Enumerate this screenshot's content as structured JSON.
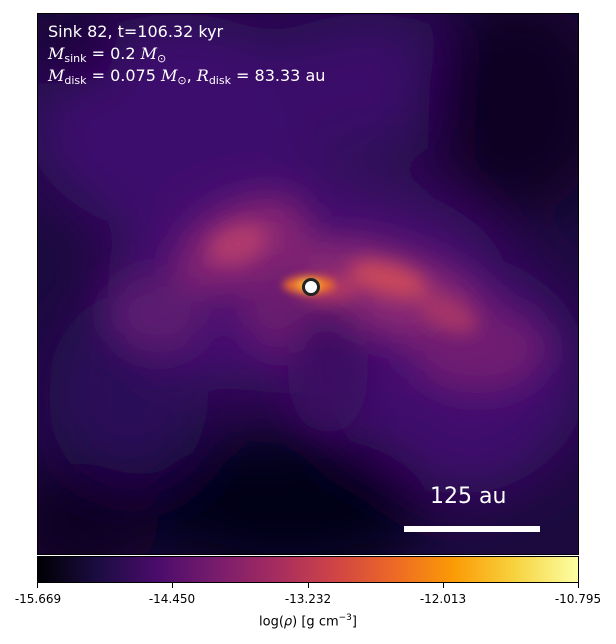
{
  "title": {
    "sink_line": "Sink 82, t=106.32 kyr",
    "msink_symbol": "M",
    "msink_sub": "sink",
    "msink_value": " = 0.2 ",
    "msun_symbol": "M",
    "msun_sub": "⊙",
    "mdisk_symbol": "M",
    "mdisk_sub": "disk",
    "mdisk_value": " = 0.075 ",
    "mdisk_sun_symbol": "M",
    "mdisk_sun_sub": "⊙",
    "rdisk_prefix": ", ",
    "rdisk_symbol": "R",
    "rdisk_sub": "disk",
    "rdisk_value": " = 83.33 au"
  },
  "scale_bar": {
    "label": "125 au"
  },
  "colorbar": {
    "ticks": [
      "-15.669",
      "-14.450",
      "-13.232",
      "-12.013",
      "-10.795"
    ],
    "label_prefix": "log(",
    "label_rho": "ρ",
    "label_mid": ") [g cm",
    "label_exp": "−3",
    "label_suffix": "]",
    "colormap": "inferno",
    "min": -15.669,
    "max": -10.795
  },
  "colors": {
    "background_dark": "#0a0316",
    "envelope": "#3b0f6f",
    "filament": "#b5367a",
    "disk_core": "#f08b2a",
    "marker_fill": "#ffffff",
    "marker_edge": "#222222"
  }
}
